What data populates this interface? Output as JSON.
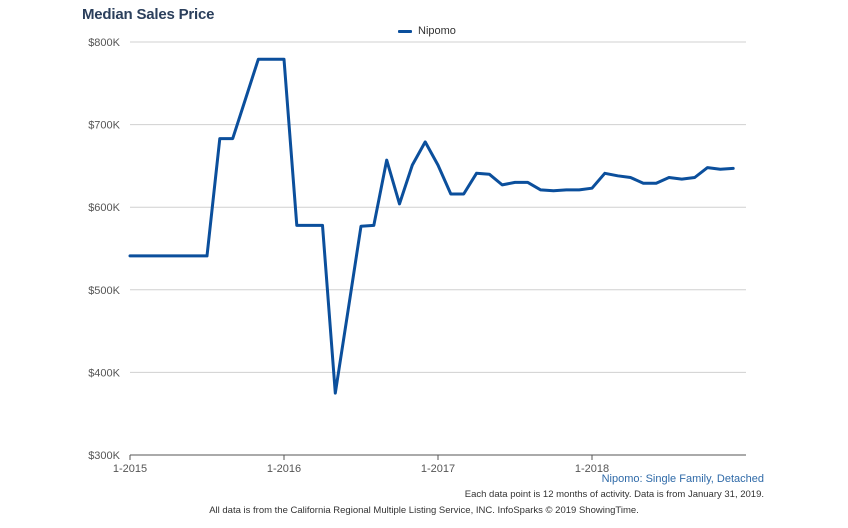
{
  "chart_data": {
    "type": "line",
    "title": "Median Sales Price",
    "subtitle": "Nipomo: Single Family, Detached",
    "x_tick_labels": [
      "1-2015",
      "1-2016",
      "1-2017",
      "1-2018"
    ],
    "y_tick_labels": [
      "$300K",
      "$400K",
      "$500K",
      "$600K",
      "$700K",
      "$800K"
    ],
    "ylim": [
      300000,
      800000
    ],
    "x_range": [
      "2015-01",
      "2019-01"
    ],
    "grid": true,
    "legend_position": "top-center",
    "colors": {
      "series": "#0b4f9c",
      "title": "#2b3f5c",
      "subtitle": "#2f6aa8"
    },
    "series": [
      {
        "name": "Nipomo",
        "points": [
          [
            "2015-01",
            541000
          ],
          [
            "2015-02",
            541000
          ],
          [
            "2015-03",
            541000
          ],
          [
            "2015-04",
            541000
          ],
          [
            "2015-05",
            541000
          ],
          [
            "2015-06",
            541000
          ],
          [
            "2015-07",
            541000
          ],
          [
            "2015-08",
            683000
          ],
          [
            "2015-09",
            683000
          ],
          [
            "2015-10",
            731000
          ],
          [
            "2015-11",
            779000
          ],
          [
            "2015-12",
            779000
          ],
          [
            "2016-01",
            779000
          ],
          [
            "2016-02",
            578000
          ],
          [
            "2016-03",
            578000
          ],
          [
            "2016-04",
            578000
          ],
          [
            "2016-05",
            375000
          ],
          [
            "2016-06",
            476000
          ],
          [
            "2016-07",
            577000
          ],
          [
            "2016-08",
            578000
          ],
          [
            "2016-09",
            657000
          ],
          [
            "2016-10",
            604000
          ],
          [
            "2016-11",
            651000
          ],
          [
            "2016-12",
            679000
          ],
          [
            "2017-01",
            651000
          ],
          [
            "2017-02",
            616000
          ],
          [
            "2017-03",
            616000
          ],
          [
            "2017-04",
            641000
          ],
          [
            "2017-05",
            640000
          ],
          [
            "2017-06",
            627000
          ],
          [
            "2017-07",
            630000
          ],
          [
            "2017-08",
            630000
          ],
          [
            "2017-09",
            621000
          ],
          [
            "2017-10",
            620000
          ],
          [
            "2017-11",
            621000
          ],
          [
            "2017-12",
            621000
          ],
          [
            "2018-01",
            623000
          ],
          [
            "2018-02",
            641000
          ],
          [
            "2018-03",
            638000
          ],
          [
            "2018-04",
            636000
          ],
          [
            "2018-05",
            629000
          ],
          [
            "2018-06",
            629000
          ],
          [
            "2018-07",
            636000
          ],
          [
            "2018-08",
            634000
          ],
          [
            "2018-09",
            636000
          ],
          [
            "2018-10",
            648000
          ],
          [
            "2018-11",
            646000
          ],
          [
            "2018-12",
            647000
          ]
        ]
      }
    ]
  },
  "notes": {
    "data_point_note": "Each data point is 12 months of activity. Data is from January 31, 2019.",
    "footer": "All data is from the California Regional Multiple Listing Service, INC. InfoSparks © 2019 ShowingTime."
  }
}
